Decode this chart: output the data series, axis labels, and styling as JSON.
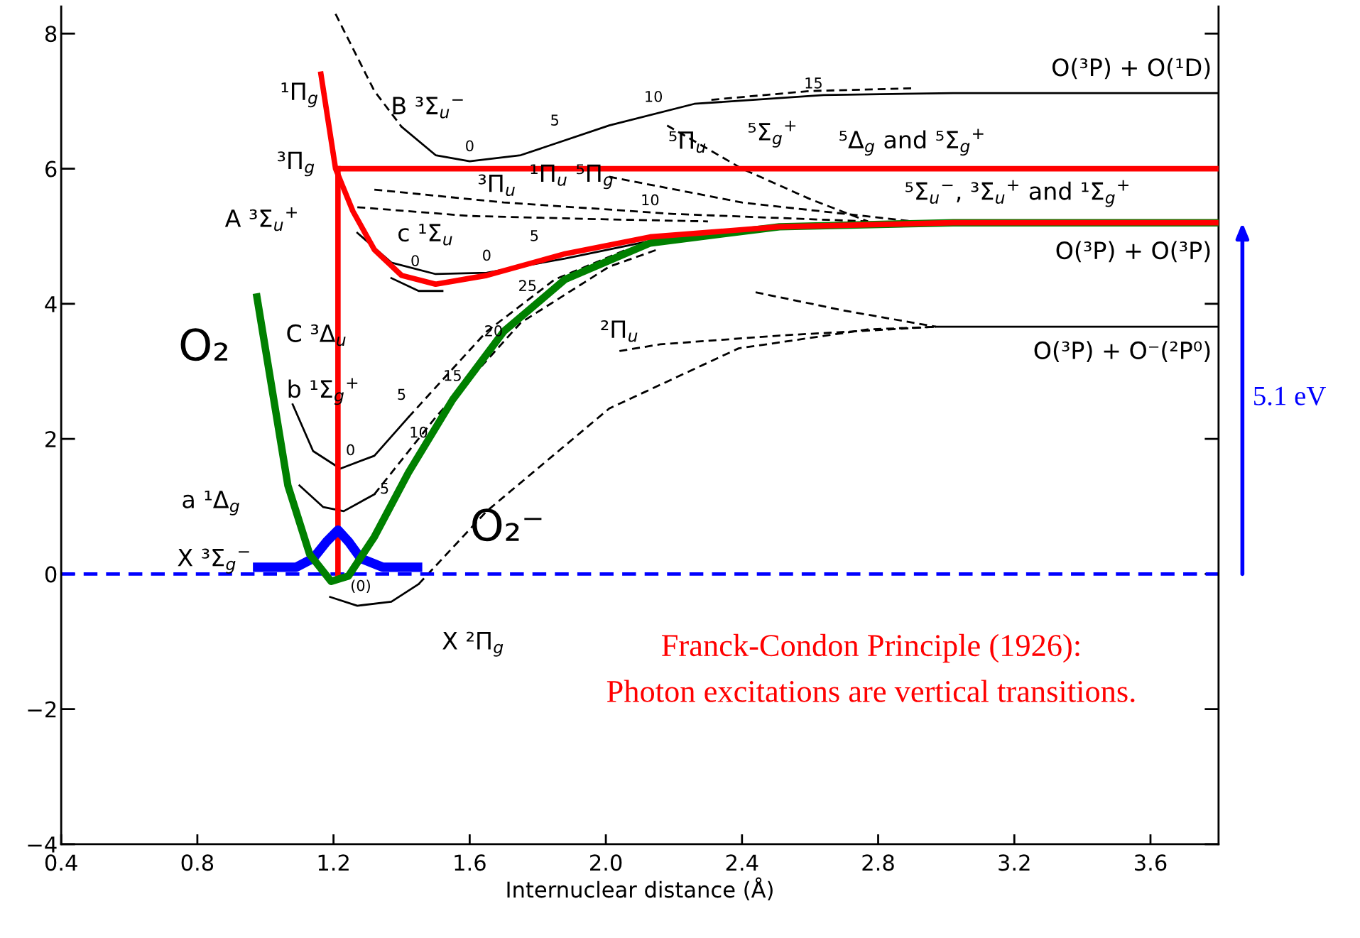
{
  "chart_data": {
    "type": "line",
    "xlabel": "Internuclear distance (Å)",
    "xlim": [
      0.4,
      3.8
    ],
    "ylim": [
      -4,
      8.4
    ],
    "xticks": [
      0.4,
      0.8,
      1.2,
      1.6,
      {
        "value": 2.0,
        "label": "2.0"
      },
      2.4,
      2.8,
      3.2,
      3.6
    ],
    "yticks": [
      -4,
      -2,
      0,
      2,
      4,
      6,
      8
    ],
    "grid": false,
    "marker": "none",
    "series": [
      {
        "color": "#ff0000",
        "line_style": "solid",
        "x": [
          1.163,
          1.206,
          1.257,
          1.32,
          1.4,
          1.5,
          1.65,
          1.88,
          2.13,
          2.51,
          3.02,
          3.8
        ],
        "values": [
          7.4,
          6.0,
          5.37,
          4.8,
          4.42,
          4.29,
          4.42,
          4.74,
          4.99,
          5.14,
          5.2,
          5.2
        ]
      },
      {
        "color": "#008000",
        "line_style": "solid",
        "x": [
          0.975,
          1.066,
          1.13,
          1.193,
          1.244,
          1.32,
          1.42,
          1.55,
          1.7,
          1.88,
          2.13,
          2.51,
          3.02,
          3.8
        ],
        "values": [
          4.1,
          1.31,
          0.29,
          -0.11,
          -0.03,
          0.55,
          1.5,
          2.58,
          3.59,
          4.36,
          4.9,
          5.14,
          5.2,
          5.2
        ]
      },
      {
        "color": "#0000ff",
        "line_style": "solid",
        "x": [
          0.977,
          1.09,
          1.14,
          1.18,
          1.213,
          1.244,
          1.28,
          1.345,
          1.447
        ],
        "values": [
          0.1,
          0.1,
          0.23,
          0.48,
          0.65,
          0.48,
          0.23,
          0.1,
          0.1
        ]
      },
      {
        "color": "#ff0000",
        "line_style": "solid",
        "x": [
          1.213,
          1.213
        ],
        "values": [
          0,
          6.0
        ]
      },
      {
        "color": "#ff0000",
        "line_style": "solid",
        "x": [
          1.213,
          3.8
        ],
        "values": [
          6.0,
          6.0
        ]
      },
      {
        "color": "#000000",
        "line_style": "dashed",
        "x": [
          1.206,
          1.32,
          1.4
        ],
        "values": [
          8.29,
          7.15,
          6.62
        ]
      },
      {
        "color": "#000000",
        "line_style": "solid",
        "x": [
          1.4,
          1.5,
          1.6,
          1.75,
          2.01,
          2.26,
          2.64,
          3.02,
          3.8
        ],
        "values": [
          6.62,
          6.2,
          6.11,
          6.2,
          6.64,
          6.96,
          7.09,
          7.12,
          7.12
        ]
      },
      {
        "color": "#000000",
        "line_style": "solid",
        "x": [
          1.19,
          1.27,
          1.37,
          1.45
        ],
        "values": [
          -0.34,
          -0.47,
          -0.41,
          -0.15
        ]
      },
      {
        "color": "#000000",
        "line_style": "dashed",
        "x": [
          1.45,
          1.65,
          2.01,
          2.39,
          2.77,
          2.97
        ],
        "values": [
          -0.15,
          0.93,
          2.45,
          3.34,
          3.62,
          3.66
        ]
      },
      {
        "color": "#000000",
        "line_style": "dashed",
        "x": [
          2.04,
          2.16,
          2.51,
          2.97
        ],
        "values": [
          3.3,
          3.4,
          3.53,
          3.66
        ]
      },
      {
        "color": "#000000",
        "line_style": "solid",
        "x": [
          2.97,
          3.8
        ],
        "values": [
          3.66,
          3.66
        ]
      },
      {
        "color": "#000000",
        "line_style": "solid",
        "x": [
          1.08,
          1.14,
          1.22,
          1.32,
          1.42
        ],
        "values": [
          2.51,
          1.82,
          1.56,
          1.75,
          2.32
        ]
      },
      {
        "color": "#000000",
        "line_style": "dashed",
        "x": [
          1.42,
          1.65,
          1.85,
          2.06
        ],
        "values": [
          2.32,
          3.59,
          4.36,
          4.8
        ]
      },
      {
        "color": "#000000",
        "line_style": "solid",
        "x": [
          1.1,
          1.17,
          1.23,
          1.32
        ],
        "values": [
          1.31,
          0.99,
          0.93,
          1.18
        ]
      },
      {
        "color": "#000000",
        "line_style": "dashed",
        "x": [
          1.32,
          1.5,
          1.75,
          2.01,
          2.15
        ],
        "values": [
          1.18,
          2.32,
          3.72,
          4.55,
          4.8
        ]
      },
      {
        "color": "#000000",
        "line_style": "solid",
        "x": [
          1.27,
          1.37,
          1.5,
          1.65,
          1.88,
          2.13,
          2.51
        ],
        "values": [
          5.05,
          4.61,
          4.44,
          4.46,
          4.67,
          4.93,
          5.12
        ]
      },
      {
        "color": "#000000",
        "line_style": "solid",
        "x": [
          1.37,
          1.45,
          1.52
        ],
        "values": [
          4.38,
          4.19,
          4.19
        ]
      },
      {
        "color": "#000000",
        "line_style": "dashed",
        "x": [
          1.32,
          1.7,
          2.2,
          2.77
        ],
        "values": [
          5.69,
          5.5,
          5.33,
          5.22
        ]
      },
      {
        "color": "#000000",
        "line_style": "dashed",
        "x": [
          1.27,
          1.6,
          2.0,
          2.3
        ],
        "values": [
          5.43,
          5.3,
          5.25,
          5.22
        ]
      },
      {
        "color": "#000000",
        "line_style": "dashed",
        "x": [
          2.18,
          2.4,
          2.6,
          2.77
        ],
        "values": [
          6.64,
          6.0,
          5.55,
          5.22
        ]
      },
      {
        "color": "#000000",
        "line_style": "dashed",
        "x": [
          2.01,
          2.4,
          2.9
        ],
        "values": [
          5.88,
          5.5,
          5.22
        ]
      },
      {
        "color": "#000000",
        "line_style": "dashed",
        "x": [
          2.31,
          2.6,
          2.9
        ],
        "values": [
          7.02,
          7.15,
          7.19
        ]
      },
      {
        "color": "#000000",
        "line_style": "dashed",
        "x": [
          2.44,
          2.7,
          2.97
        ],
        "values": [
          4.17,
          3.9,
          3.66
        ]
      }
    ],
    "ref_lines": [
      {
        "axis": "y",
        "value": 0,
        "color": "#0000ff",
        "line_style": "dashed"
      }
    ],
    "annotations": [
      "B ³Σ$_{u}$$^{−}$",
      "¹Π$_{g}$",
      "³Π$_{g}$",
      "A ³Σ$_{u}$$^{+}$",
      "c ¹Σ$_{u}$",
      "C ³Δ$_{u}$",
      "b ¹Σ$_{g}$$^{+}$",
      "a ¹Δ$_{g}$",
      "X ³Σ$_{g}$$^{−}$",
      "X ²Π$_{g}$",
      "²Π$_{u}$",
      "³Π$_{u}$",
      "¹Π$_{u}$ ⁵Π$_{g}$",
      "⁵Π$_{u}$",
      "⁵Σ$_{g}$$^{+}$",
      "⁵Δ$_{g}$ and ⁵Σ$_{g}$$^{+}$",
      "⁵Σ$_{u}$$^{−}$, ³Σ$_{u}$$^{+}$ and ¹Σ$_{g}$$^{+}$",
      "O(³P) + O(¹D)",
      "O(³P) + O(³P)",
      "O(³P) + O⁻(²P⁰)",
      "O₂",
      "O₂⁻",
      "0",
      "5",
      "10",
      "15",
      "10",
      "5",
      "0",
      "0",
      "25",
      "20",
      "15",
      "10",
      "5",
      "5",
      "0",
      "(0)",
      "5.1 eV",
      "Franck-Condon Principle (1926):",
      "Photon excitations are vertical transitions."
    ]
  }
}
